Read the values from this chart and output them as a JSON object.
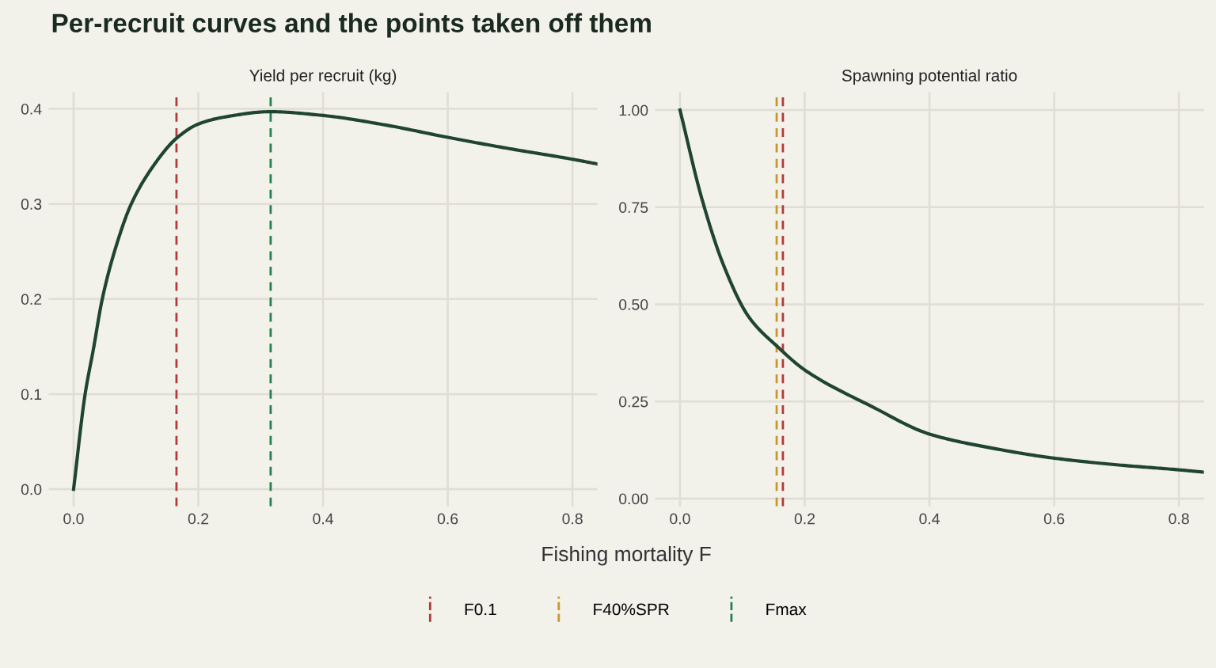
{
  "chart_data": [
    {
      "type": "line",
      "title": "Per-recruit curves and the points taken off them",
      "subtitle": "Yield per recruit (kg)",
      "xlabel": "Fishing mortality F",
      "legend": "bottom",
      "grid": true,
      "line_style": "solid",
      "xlim": [
        -0.04,
        0.84
      ],
      "ylim": [
        -0.018,
        0.4175
      ],
      "xticks": [
        {
          "value": 0,
          "label": "0.0"
        },
        0.2,
        0.4,
        0.6,
        0.8
      ],
      "yticks": [
        {
          "value": 0,
          "label": "0.0"
        },
        0.1,
        0.2,
        0.3,
        0.4
      ],
      "series": [
        {
          "color": "#1f4430",
          "x": [
            0,
            0.0185,
            0.0317,
            0.046,
            0.067,
            0.0925,
            0.129,
            0.165,
            0.2,
            0.239,
            0.316,
            0.4,
            0.5,
            0.6,
            0.7,
            0.8,
            0.84
          ],
          "values": [
            0,
            0.1,
            0.147,
            0.2,
            0.253,
            0.3,
            0.341,
            0.369,
            0.384,
            0.391,
            0.397,
            0.393,
            0.383,
            0.37,
            0.358,
            0.347,
            0.342
          ]
        }
      ],
      "ref_lines": [
        {
          "axis": "x",
          "value": 0.165,
          "label": "F0.1",
          "color": "#b23a3a",
          "line_style": "dashed"
        },
        {
          "axis": "x",
          "value": 0.316,
          "label": "Fmax",
          "color": "#23804f",
          "line_style": "dashed"
        }
      ]
    },
    {
      "type": "line",
      "subtitle": "Spawning potential ratio",
      "grid": true,
      "line_style": "solid",
      "xlim": [
        -0.04,
        0.84
      ],
      "ylim": [
        -0.02,
        1.046
      ],
      "xticks": [
        {
          "value": 0,
          "label": "0.0"
        },
        0.2,
        0.4,
        0.6,
        0.8
      ],
      "yticks": [
        {
          "value": 0,
          "label": "0.00"
        },
        {
          "value": 0.25,
          "label": "0.25"
        },
        {
          "value": 0.5,
          "label": "0.50"
        },
        {
          "value": 0.75,
          "label": "0.75"
        },
        {
          "value": 1,
          "label": "1.00"
        }
      ],
      "series": [
        {
          "color": "#1f4430",
          "x": [
            0,
            0.0354,
            0.0708,
            0.111,
            0.157,
            0.2,
            0.31,
            0.4,
            0.5,
            0.6,
            0.7,
            0.8,
            0.84
          ],
          "values": [
            1,
            0.77,
            0.597,
            0.466,
            0.39,
            0.331,
            0.235,
            0.166,
            0.13,
            0.104,
            0.087,
            0.074,
            0.068
          ]
        }
      ],
      "ref_lines": [
        {
          "axis": "x",
          "value": 0.155,
          "label": "F40%SPR",
          "color": "#c9962e",
          "line_style": "dashed"
        },
        {
          "axis": "x",
          "value": 0.165,
          "color": "#b23a3a",
          "line_style": "dashed"
        }
      ]
    }
  ]
}
